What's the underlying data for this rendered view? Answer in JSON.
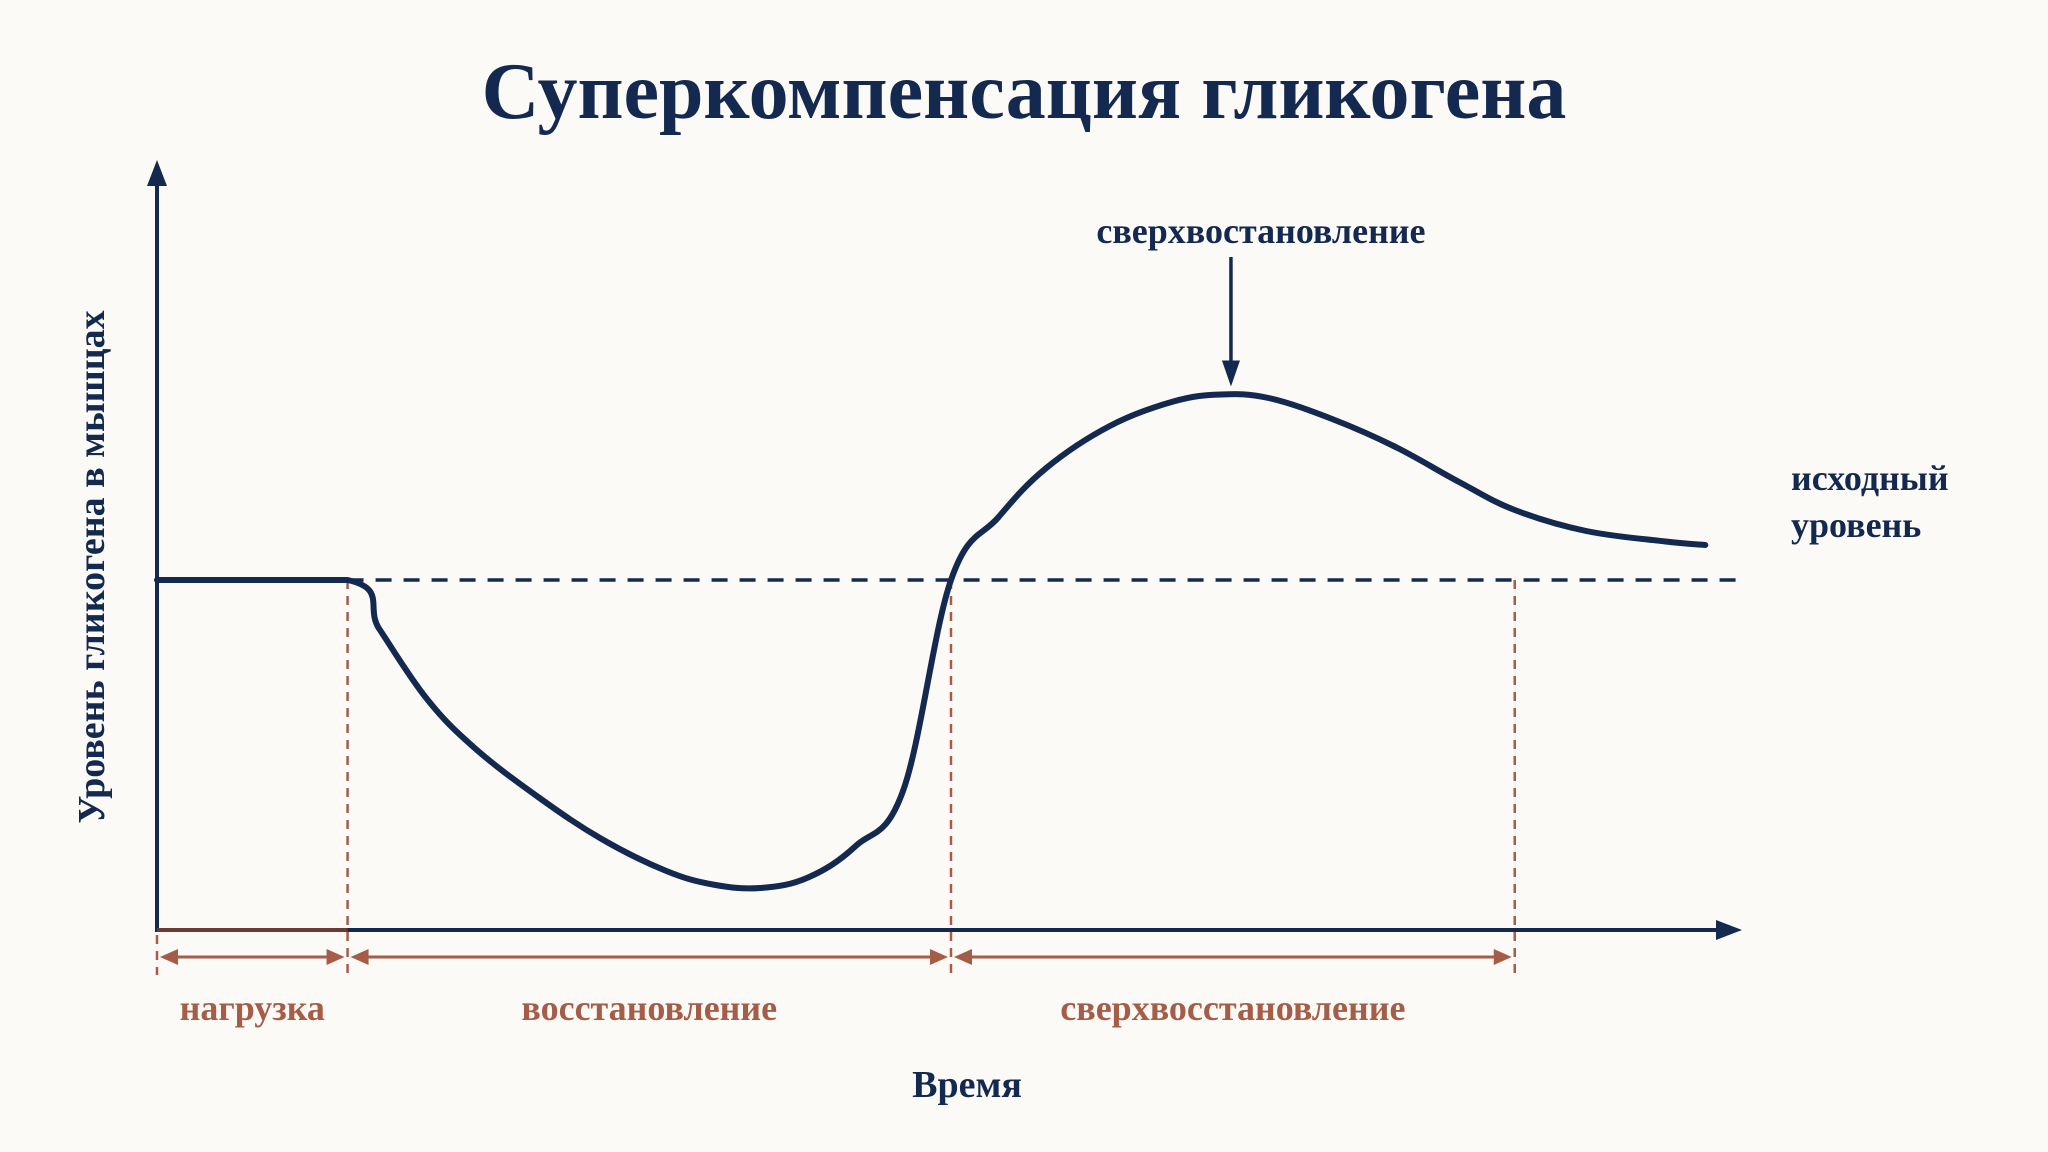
{
  "title": "Суперкомпенсация гликогена",
  "y_axis_label": "Уровень гликогена в мышцах",
  "x_axis_label": "Время",
  "baseline_label": [
    "исходный",
    "уровень"
  ],
  "peak_label": "сверхвостановление",
  "phases": [
    {
      "label": "нагрузка"
    },
    {
      "label": "восстановление"
    },
    {
      "label": "сверхвосстановление"
    }
  ],
  "colors": {
    "ink": "#14294f",
    "phase": "#a65d47",
    "background": "#fbfaf6"
  },
  "chart_data": {
    "type": "line",
    "x_range": [
      0,
      100
    ],
    "y_range": [
      0,
      100
    ],
    "baseline": 50,
    "phase_boundaries": [
      0,
      12,
      50,
      85.5
    ],
    "series": [
      {
        "points": [
          [
            0,
            50
          ],
          [
            12,
            50
          ],
          [
            14,
            43
          ],
          [
            17,
            33
          ],
          [
            20,
            26
          ],
          [
            24,
            19
          ],
          [
            28,
            13
          ],
          [
            32,
            8.5
          ],
          [
            35,
            6.5
          ],
          [
            38,
            6
          ],
          [
            41,
            7.5
          ],
          [
            44,
            12
          ],
          [
            47,
            20
          ],
          [
            50,
            50
          ],
          [
            53,
            59
          ],
          [
            56,
            66
          ],
          [
            60,
            72
          ],
          [
            64,
            75.5
          ],
          [
            67,
            76.5
          ],
          [
            70,
            76
          ],
          [
            74,
            73
          ],
          [
            78,
            69
          ],
          [
            82,
            64
          ],
          [
            85.5,
            60
          ],
          [
            90,
            57
          ],
          [
            95,
            55.5
          ],
          [
            97.5,
            55
          ]
        ],
        "peak": [
          67,
          76.5
        ]
      }
    ]
  }
}
